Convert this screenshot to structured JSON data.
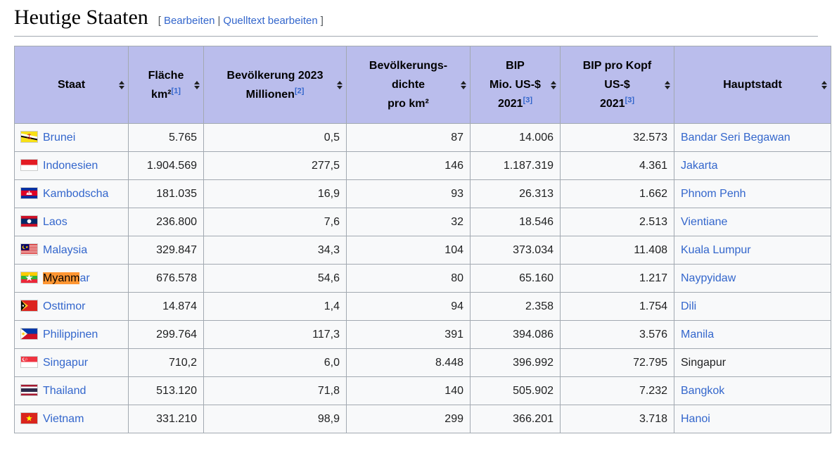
{
  "page": {
    "heading": "Heutige Staaten",
    "edit": {
      "open_bracket": "[",
      "edit_label": "Bearbeiten",
      "separator": "|",
      "source_label": "Quelltext bearbeiten",
      "close_bracket": "]"
    }
  },
  "colors": {
    "header_bg": "#babdec",
    "row_bg": "#f8f9fa",
    "border": "#a2a9b1",
    "link": "#3366cc",
    "find_highlight": "#ff9632",
    "text": "#202122"
  },
  "table": {
    "sort_icon": "sort-icon",
    "columns": [
      {
        "id": "staat",
        "lines": [
          {
            "text": "Staat"
          }
        ]
      },
      {
        "id": "flaeche",
        "lines": [
          {
            "text": "Fläche"
          },
          {
            "text": "km²",
            "ref": "[1]"
          }
        ]
      },
      {
        "id": "bevoelkerung",
        "lines": [
          {
            "text": "Bevölkerung 2023"
          },
          {
            "text": "Millionen",
            "ref": "[2]"
          }
        ]
      },
      {
        "id": "dichte",
        "lines": [
          {
            "text": "Bevölkerungs-"
          },
          {
            "text": "dichte"
          },
          {
            "text": "pro km²"
          }
        ]
      },
      {
        "id": "bip",
        "lines": [
          {
            "text": "BIP"
          },
          {
            "text": "Mio. US-$"
          },
          {
            "text": "2021",
            "ref": "[3]"
          }
        ]
      },
      {
        "id": "bip_pro_kopf",
        "lines": [
          {
            "text": "BIP pro Kopf"
          },
          {
            "text": "US-$"
          },
          {
            "text": "2021",
            "ref": "[3]"
          }
        ]
      },
      {
        "id": "hauptstadt",
        "lines": [
          {
            "text": "Hauptstadt"
          }
        ]
      }
    ],
    "rows": [
      {
        "flag_icon": "flag-brunei",
        "staat": "Brunei",
        "flaeche": "5.765",
        "bevoelkerung": "0,5",
        "dichte": "87",
        "bip": "14.006",
        "bip_pro_kopf": "32.573",
        "hauptstadt": "Bandar Seri Begawan",
        "hauptstadt_is_link": true
      },
      {
        "flag_icon": "flag-indonesien",
        "staat": "Indonesien",
        "flaeche": "1.904.569",
        "bevoelkerung": "277,5",
        "dichte": "146",
        "bip": "1.187.319",
        "bip_pro_kopf": "4.361",
        "hauptstadt": "Jakarta",
        "hauptstadt_is_link": true
      },
      {
        "flag_icon": "flag-kambodscha",
        "staat": "Kambodscha",
        "flaeche": "181.035",
        "bevoelkerung": "16,9",
        "dichte": "93",
        "bip": "26.313",
        "bip_pro_kopf": "1.662",
        "hauptstadt": "Phnom Penh",
        "hauptstadt_is_link": true
      },
      {
        "flag_icon": "flag-laos",
        "staat": "Laos",
        "flaeche": "236.800",
        "bevoelkerung": "7,6",
        "dichte": "32",
        "bip": "18.546",
        "bip_pro_kopf": "2.513",
        "hauptstadt": "Vientiane",
        "hauptstadt_is_link": true
      },
      {
        "flag_icon": "flag-malaysia",
        "staat": "Malaysia",
        "flaeche": "329.847",
        "bevoelkerung": "34,3",
        "dichte": "104",
        "bip": "373.034",
        "bip_pro_kopf": "11.408",
        "hauptstadt": "Kuala Lumpur",
        "hauptstadt_is_link": true
      },
      {
        "flag_icon": "flag-myanmar",
        "staat": "Myanmar",
        "staat_highlight": "Myanm",
        "staat_rest": "ar",
        "flaeche": "676.578",
        "bevoelkerung": "54,6",
        "dichte": "80",
        "bip": "65.160",
        "bip_pro_kopf": "1.217",
        "hauptstadt": "Naypyidaw",
        "hauptstadt_is_link": true
      },
      {
        "flag_icon": "flag-osttimor",
        "staat": "Osttimor",
        "flaeche": "14.874",
        "bevoelkerung": "1,4",
        "dichte": "94",
        "bip": "2.358",
        "bip_pro_kopf": "1.754",
        "hauptstadt": "Dili",
        "hauptstadt_is_link": true
      },
      {
        "flag_icon": "flag-philippinen",
        "staat": "Philippinen",
        "flaeche": "299.764",
        "bevoelkerung": "117,3",
        "dichte": "391",
        "bip": "394.086",
        "bip_pro_kopf": "3.576",
        "hauptstadt": "Manila",
        "hauptstadt_is_link": true
      },
      {
        "flag_icon": "flag-singapur",
        "staat": "Singapur",
        "flaeche": "710,2",
        "bevoelkerung": "6,0",
        "dichte": "8.448",
        "bip": "396.992",
        "bip_pro_kopf": "72.795",
        "hauptstadt": "Singapur",
        "hauptstadt_is_link": false
      },
      {
        "flag_icon": "flag-thailand",
        "staat": "Thailand",
        "flaeche": "513.120",
        "bevoelkerung": "71,8",
        "dichte": "140",
        "bip": "505.902",
        "bip_pro_kopf": "7.232",
        "hauptstadt": "Bangkok",
        "hauptstadt_is_link": true
      },
      {
        "flag_icon": "flag-vietnam",
        "staat": "Vietnam",
        "flaeche": "331.210",
        "bevoelkerung": "98,9",
        "dichte": "299",
        "bip": "366.201",
        "bip_pro_kopf": "3.718",
        "hauptstadt": "Hanoi",
        "hauptstadt_is_link": true
      }
    ]
  }
}
